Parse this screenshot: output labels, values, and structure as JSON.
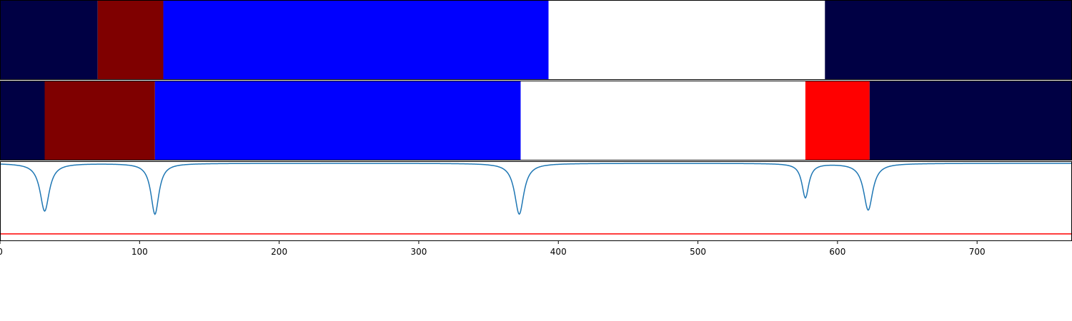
{
  "chart_data": [
    {
      "type": "segment-band",
      "panel": "top",
      "xlim": [
        0,
        768
      ],
      "segments": [
        {
          "start": 0,
          "end": 70,
          "color": "#000044"
        },
        {
          "start": 70,
          "end": 117,
          "color": "#7f0000"
        },
        {
          "start": 117,
          "end": 393,
          "color": "#0000ff"
        },
        {
          "start": 393,
          "end": 591,
          "color": "#ffffff"
        },
        {
          "start": 591,
          "end": 768,
          "color": "#000044"
        }
      ]
    },
    {
      "type": "segment-band",
      "panel": "middle",
      "xlim": [
        0,
        768
      ],
      "segments": [
        {
          "start": 0,
          "end": 32,
          "color": "#000044"
        },
        {
          "start": 32,
          "end": 111,
          "color": "#7f0000"
        },
        {
          "start": 111,
          "end": 373,
          "color": "#0000ff"
        },
        {
          "start": 373,
          "end": 577,
          "color": "#ffffff"
        },
        {
          "start": 577,
          "end": 623,
          "color": "#ff0000"
        },
        {
          "start": 623,
          "end": 768,
          "color": "#000044"
        }
      ]
    },
    {
      "type": "line",
      "panel": "bottom",
      "xlim": [
        0,
        768
      ],
      "ylim": [
        -0.75,
        0.02
      ],
      "xticks": [
        0,
        100,
        200,
        300,
        400,
        500,
        600,
        700
      ],
      "baseline": 0,
      "dips": [
        {
          "center": 32,
          "depth": -0.46,
          "width": 4
        },
        {
          "center": 111,
          "depth": -0.49,
          "width": 3.5
        },
        {
          "center": 372,
          "depth": -0.49,
          "width": 4
        },
        {
          "center": 577,
          "depth": -0.33,
          "width": 3
        },
        {
          "center": 622,
          "depth": -0.45,
          "width": 4
        }
      ],
      "threshold": -0.68,
      "line_color": "#1f77b4",
      "threshold_color": "#ff0000"
    }
  ]
}
